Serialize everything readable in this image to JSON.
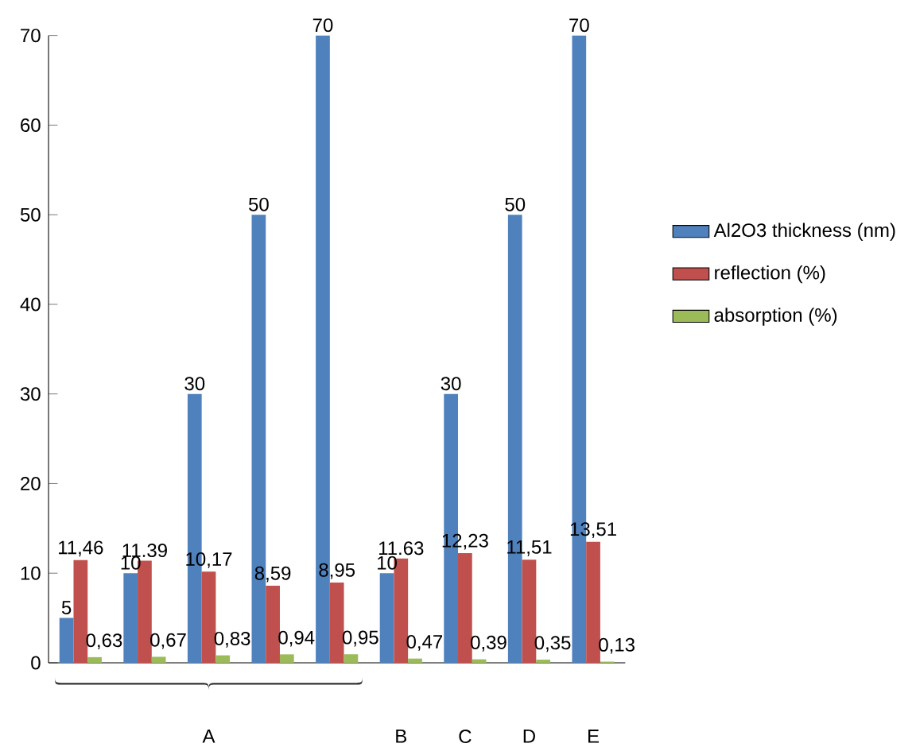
{
  "chart_data": {
    "type": "bar",
    "categories": [
      null,
      null,
      "A",
      null,
      null,
      "B",
      "C",
      "D",
      "E"
    ],
    "series": [
      {
        "name": "Al2O3 thickness (nm)",
        "color": "#4f81bd",
        "values": [
          5,
          10,
          30,
          50,
          70,
          10,
          30,
          50,
          70
        ],
        "value_labels": [
          "5",
          "10",
          "30",
          "50",
          "70",
          "10",
          "30",
          "50",
          "70"
        ]
      },
      {
        "name": "reflection (%)",
        "color": "#c0504d",
        "values": [
          11.46,
          11.39,
          10.17,
          8.59,
          8.95,
          11.63,
          12.23,
          11.51,
          13.51
        ],
        "value_labels": [
          "11,46",
          "11.39",
          "10,17",
          "8,59",
          "8,95",
          "11.63",
          "12,23",
          "11,51",
          "13,51"
        ]
      },
      {
        "name": "absorption (%)",
        "color": "#9bbb59",
        "values": [
          0.63,
          0.67,
          0.83,
          0.94,
          0.95,
          0.47,
          0.39,
          0.35,
          0.13
        ],
        "value_labels": [
          "0,63",
          "0,67",
          "0,83",
          "0,94",
          "0,95",
          "0,47",
          "0,39",
          "0,35",
          "0,13"
        ]
      }
    ],
    "ylim": [
      0,
      70
    ],
    "yticks": [
      0,
      10,
      20,
      30,
      40,
      50,
      60,
      70
    ],
    "legend": "right"
  }
}
